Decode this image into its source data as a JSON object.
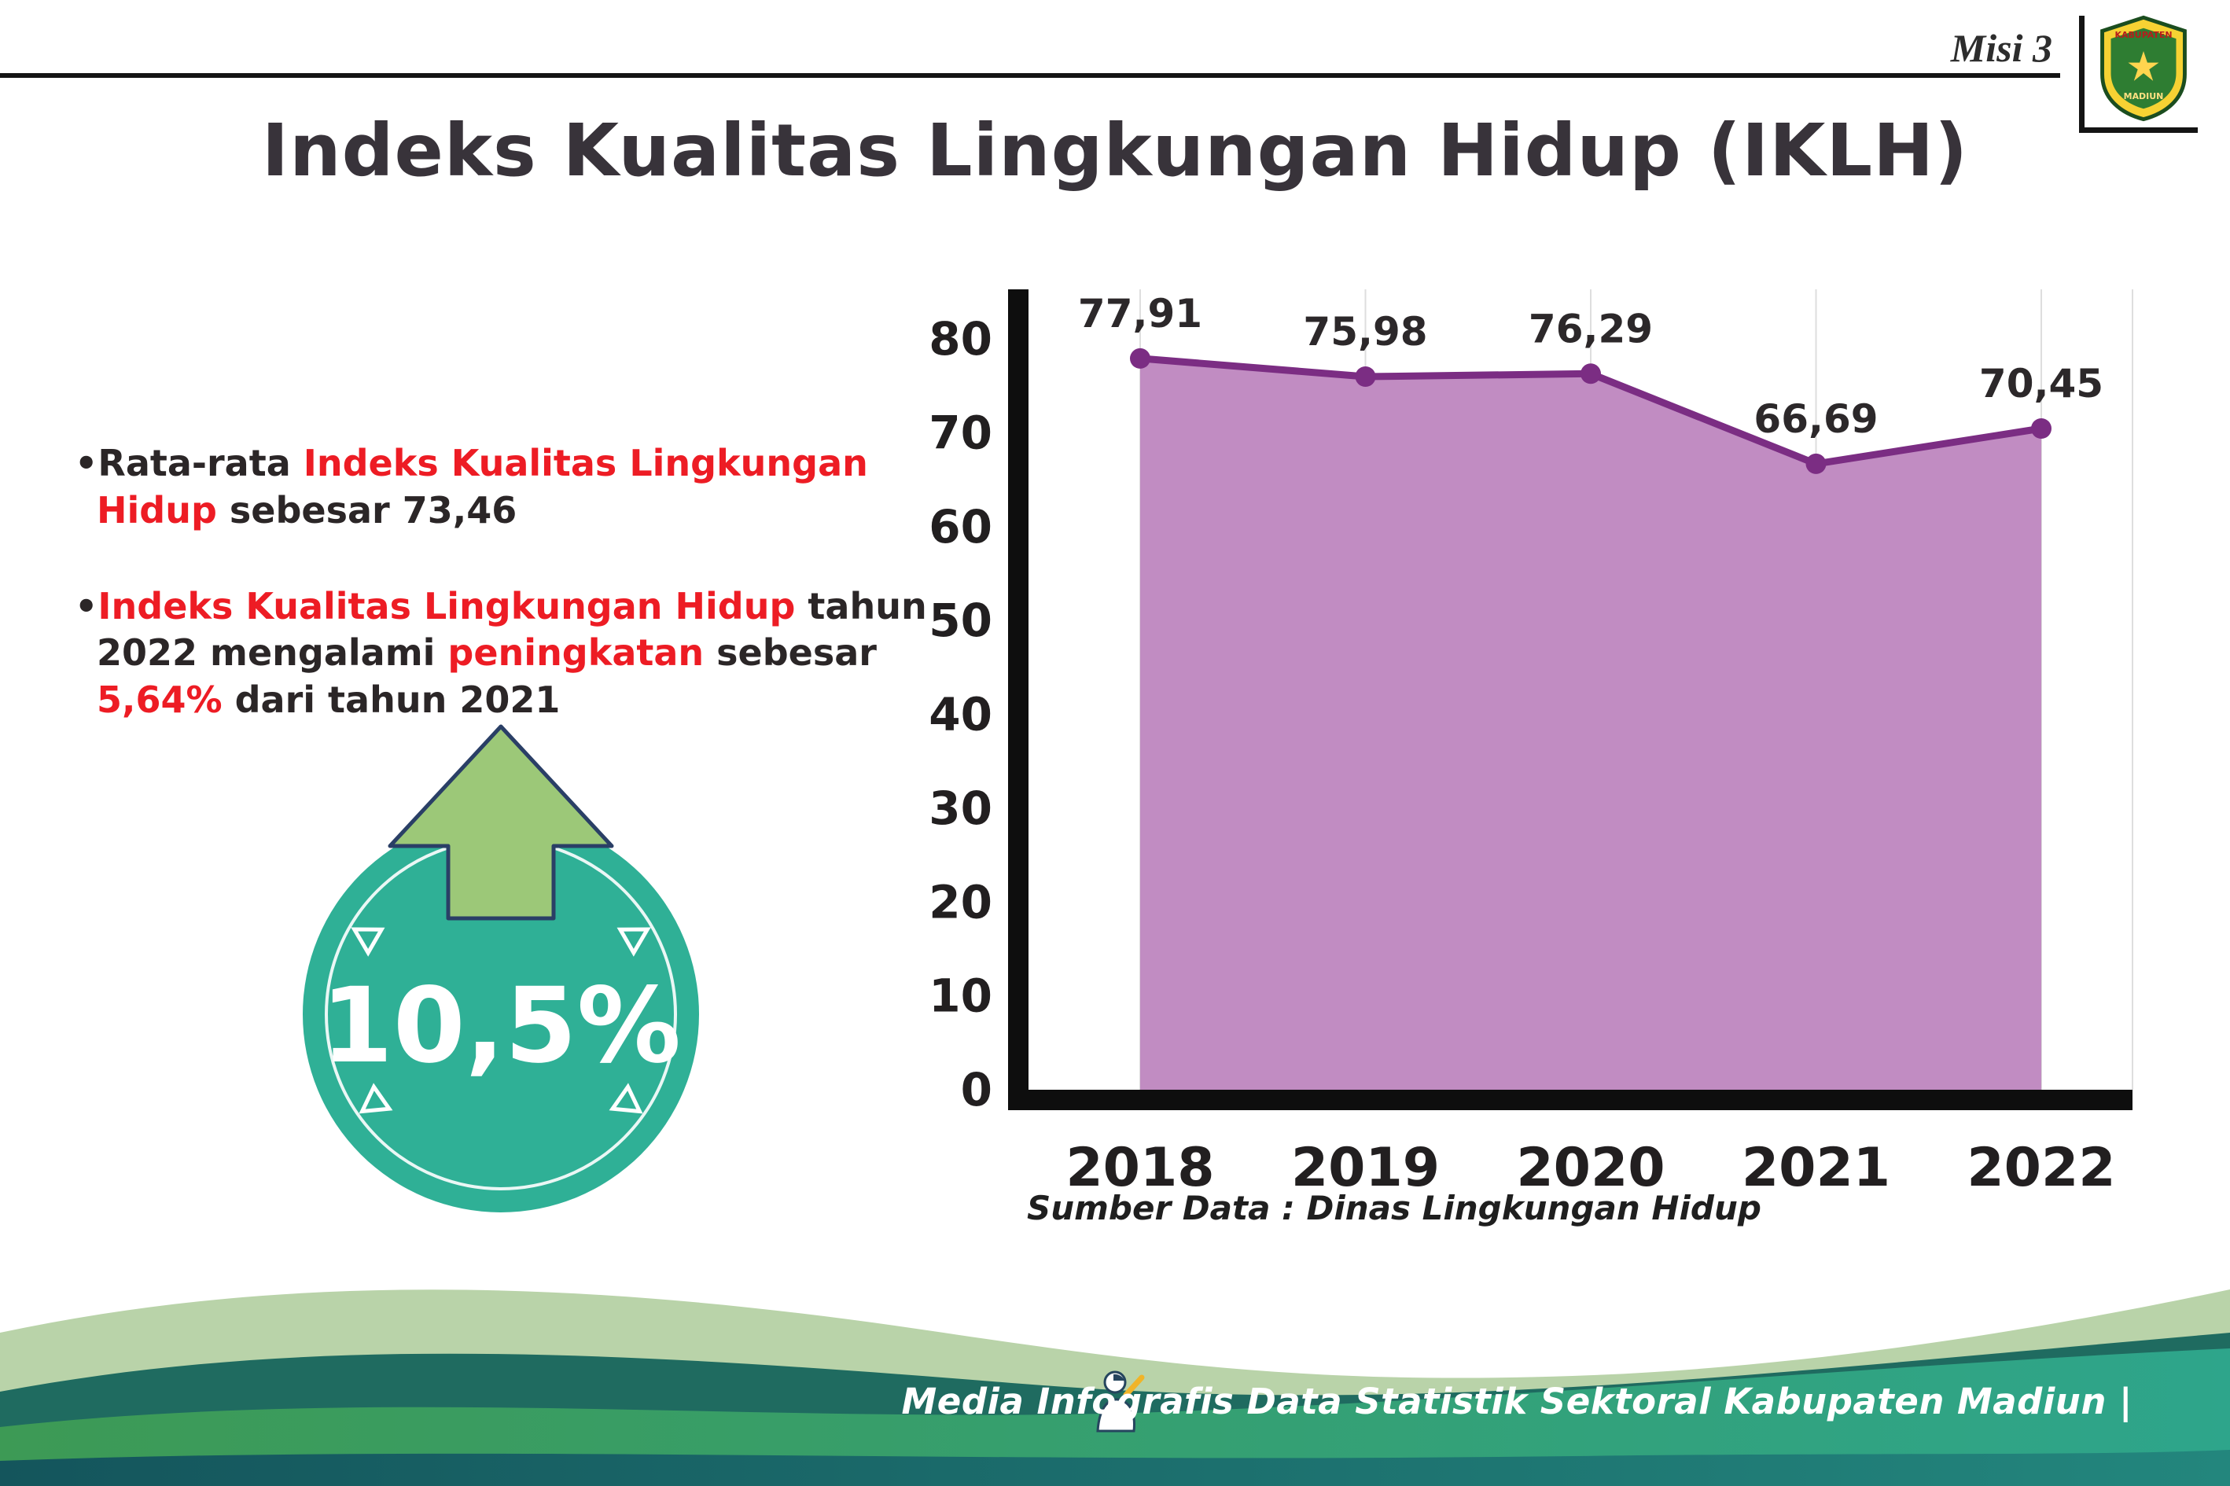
{
  "header": {
    "misi_label": "Misi 3",
    "title": "Indeks Kualitas Lingkungan Hidup (IKLH)",
    "logo": {
      "top_text": "KABUPATEN",
      "bottom_text": "MADIUN"
    }
  },
  "bullets": [
    {
      "segments": [
        {
          "text": "•Rata-rata ",
          "style": "dark"
        },
        {
          "text": "Indeks Kualitas Lingkungan Hidup",
          "style": "red"
        },
        {
          "text": " sebesar 73,46",
          "style": "dark"
        }
      ]
    },
    {
      "segments": [
        {
          "text": "•",
          "style": "dark"
        },
        {
          "text": "Indeks Kualitas Lingkungan Hidup",
          "style": "red"
        },
        {
          "text": " tahun 2022 mengalami ",
          "style": "dark"
        },
        {
          "text": "peningkatan",
          "style": "red"
        },
        {
          "text": " sebesar ",
          "style": "dark"
        },
        {
          "text": "5,64%",
          "style": "red"
        },
        {
          "text": " dari tahun 2021",
          "style": "dark"
        }
      ]
    }
  ],
  "badge": {
    "value": "10,5%"
  },
  "chart_data": {
    "type": "area",
    "categories": [
      "2018",
      "2019",
      "2020",
      "2021",
      "2022"
    ],
    "values": [
      77.91,
      75.98,
      76.29,
      66.69,
      70.45
    ],
    "value_labels": [
      "77,91",
      "75,98",
      "76,29",
      "66,69",
      "70,45"
    ],
    "title": "Indeks Kualitas Lingkungan Hidup (IKLH)",
    "xlabel": "",
    "ylabel": "",
    "ylim": [
      0,
      80
    ],
    "yticks": [
      0,
      10,
      20,
      30,
      40,
      50,
      60,
      70,
      80
    ],
    "grid": "vertical-light",
    "legend": "none",
    "line_color": "#7b2d83",
    "fill_color": "#c18cc2",
    "source": "Sumber Data : Dinas Lingkungan Hidup"
  },
  "footer": {
    "brand_text": "Media Infografis Data Statistik Sektoral Kabupaten Madiun |"
  }
}
